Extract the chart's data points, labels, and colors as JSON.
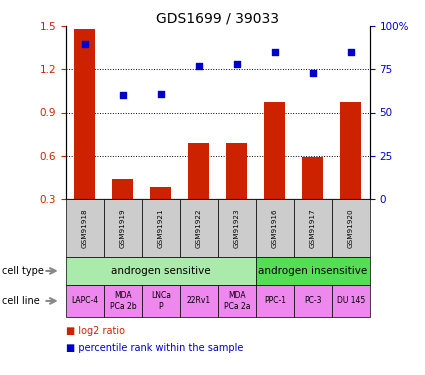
{
  "title": "GDS1699 / 39033",
  "samples": [
    "GSM91918",
    "GSM91919",
    "GSM91921",
    "GSM91922",
    "GSM91923",
    "GSM91916",
    "GSM91917",
    "GSM91920"
  ],
  "log2_ratio": [
    1.48,
    0.44,
    0.38,
    0.69,
    0.69,
    0.97,
    0.59,
    0.97
  ],
  "percentile_rank": [
    90,
    60,
    61,
    77,
    78,
    85,
    73,
    85
  ],
  "ylim_left": [
    0.3,
    1.5
  ],
  "ylim_right": [
    0,
    100
  ],
  "yticks_left": [
    0.3,
    0.6,
    0.9,
    1.2,
    1.5
  ],
  "yticks_right": [
    0,
    25,
    50,
    75,
    100
  ],
  "bar_color": "#cc2200",
  "dot_color": "#0000cc",
  "cell_type_groups": [
    {
      "label": "androgen sensitive",
      "span": [
        0,
        5
      ],
      "color": "#aaeaaa"
    },
    {
      "label": "androgen insensitive",
      "span": [
        5,
        8
      ],
      "color": "#55dd55"
    }
  ],
  "cell_lines": [
    "LAPC-4",
    "MDA\nPCa 2b",
    "LNCa\nP",
    "22Rv1",
    "MDA\nPCa 2a",
    "PPC-1",
    "PC-3",
    "DU 145"
  ],
  "cell_line_color": "#ee88ee",
  "sample_bg_color": "#cccccc",
  "legend_items": [
    {
      "color": "#cc2200",
      "label": "log2 ratio"
    },
    {
      "color": "#0000cc",
      "label": "percentile rank within the sample"
    }
  ]
}
